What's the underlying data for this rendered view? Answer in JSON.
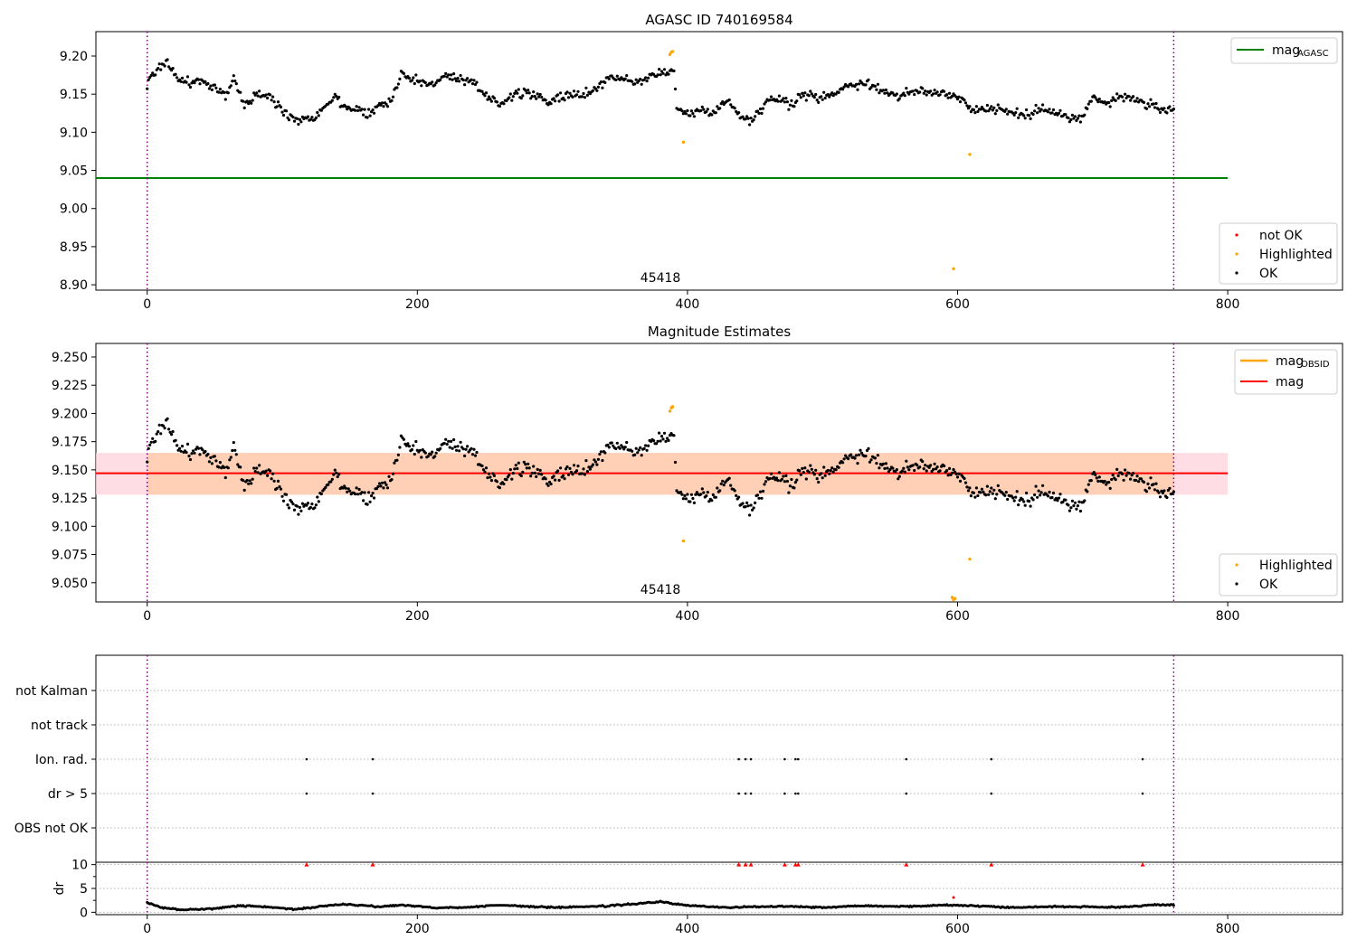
{
  "chart_data": [
    {
      "type": "scatter",
      "title": "AGASC ID 740169584",
      "xlim": [
        -38,
        885
      ],
      "ylim": [
        8.893,
        9.232
      ],
      "xticks": [
        "0",
        "200",
        "400",
        "600",
        "800"
      ],
      "yticks": [
        "8.90",
        "8.95",
        "9.00",
        "9.05",
        "9.10",
        "9.15",
        "9.20"
      ],
      "vlines": [
        0,
        760
      ],
      "obsid_label": "45418",
      "reference_line": {
        "label_main": "mag",
        "label_sub": "AGASC",
        "y": 9.04,
        "x": [
          -38,
          800
        ],
        "color": "#008000"
      },
      "legend_points": [
        "not OK",
        "Highlighted",
        "OK"
      ],
      "highlighted": [
        [
          387,
          9.202
        ],
        [
          388,
          9.205
        ],
        [
          389,
          9.206
        ],
        [
          397,
          9.087
        ],
        [
          597,
          8.921
        ],
        [
          609,
          9.071
        ]
      ],
      "ok_keypoints": [
        [
          0,
          9.163
        ],
        [
          8,
          9.185
        ],
        [
          15,
          9.193
        ],
        [
          22,
          9.17
        ],
        [
          32,
          9.165
        ],
        [
          40,
          9.168
        ],
        [
          50,
          9.155
        ],
        [
          58,
          9.15
        ],
        [
          65,
          9.17
        ],
        [
          72,
          9.135
        ],
        [
          82,
          9.15
        ],
        [
          92,
          9.145
        ],
        [
          100,
          9.128
        ],
        [
          110,
          9.118
        ],
        [
          120,
          9.118
        ],
        [
          130,
          9.13
        ],
        [
          138,
          9.148
        ],
        [
          145,
          9.135
        ],
        [
          155,
          9.13
        ],
        [
          165,
          9.125
        ],
        [
          172,
          9.135
        ],
        [
          180,
          9.14
        ],
        [
          188,
          9.178
        ],
        [
          198,
          9.168
        ],
        [
          210,
          9.162
        ],
        [
          220,
          9.175
        ],
        [
          230,
          9.168
        ],
        [
          240,
          9.165
        ],
        [
          250,
          9.15
        ],
        [
          262,
          9.138
        ],
        [
          272,
          9.15
        ],
        [
          285,
          9.15
        ],
        [
          300,
          9.14
        ],
        [
          312,
          9.148
        ],
        [
          322,
          9.15
        ],
        [
          333,
          9.158
        ],
        [
          345,
          9.175
        ],
        [
          352,
          9.17
        ],
        [
          362,
          9.165
        ],
        [
          372,
          9.172
        ],
        [
          384,
          9.18
        ],
        [
          390,
          9.185
        ],
        [
          392,
          9.128
        ],
        [
          400,
          9.125
        ],
        [
          410,
          9.128
        ],
        [
          420,
          9.13
        ],
        [
          430,
          9.14
        ],
        [
          440,
          9.122
        ],
        [
          448,
          9.115
        ],
        [
          458,
          9.14
        ],
        [
          465,
          9.148
        ],
        [
          476,
          9.135
        ],
        [
          486,
          9.15
        ],
        [
          496,
          9.145
        ],
        [
          506,
          9.15
        ],
        [
          520,
          9.162
        ],
        [
          532,
          9.165
        ],
        [
          544,
          9.155
        ],
        [
          556,
          9.148
        ],
        [
          570,
          9.153
        ],
        [
          582,
          9.152
        ],
        [
          596,
          9.15
        ],
        [
          606,
          9.14
        ],
        [
          612,
          9.128
        ],
        [
          622,
          9.132
        ],
        [
          632,
          9.13
        ],
        [
          642,
          9.125
        ],
        [
          652,
          9.122
        ],
        [
          662,
          9.13
        ],
        [
          672,
          9.13
        ],
        [
          682,
          9.118
        ],
        [
          692,
          9.118
        ],
        [
          700,
          9.145
        ],
        [
          710,
          9.138
        ],
        [
          720,
          9.145
        ],
        [
          730,
          9.145
        ],
        [
          742,
          9.135
        ],
        [
          752,
          9.13
        ],
        [
          760,
          9.125
        ]
      ]
    },
    {
      "type": "scatter",
      "title": "Magnitude Estimates",
      "xlim": [
        -38,
        885
      ],
      "ylim": [
        9.033,
        9.262
      ],
      "xticks": [
        "0",
        "200",
        "400",
        "600",
        "800"
      ],
      "yticks": [
        "9.050",
        "9.075",
        "9.100",
        "9.125",
        "9.150",
        "9.175",
        "9.200",
        "9.225",
        "9.250"
      ],
      "vlines": [
        0,
        760
      ],
      "obsid_label": "45418",
      "mag_line": {
        "label": "mag",
        "y": 9.147,
        "x": [
          -38,
          800
        ],
        "color": "#ff0000"
      },
      "mag_band": {
        "y0": 9.128,
        "y1": 9.165,
        "x": [
          -38,
          800
        ]
      },
      "obsid_band": {
        "y0": 9.128,
        "y1": 9.165,
        "x": [
          0,
          760
        ]
      },
      "obsid_legend": {
        "label_main": "mag",
        "label_sub": "OBSID",
        "color": "#ffa500"
      },
      "legend_points": [
        "Highlighted",
        "OK"
      ],
      "highlighted": [
        [
          387,
          9.202
        ],
        [
          388,
          9.205
        ],
        [
          389,
          9.206
        ],
        [
          397,
          9.087
        ],
        [
          596,
          9.037
        ],
        [
          597,
          9.035
        ],
        [
          598,
          9.036
        ],
        [
          609,
          9.071
        ]
      ]
    },
    {
      "type": "scatter",
      "xlim": [
        -38,
        885
      ],
      "yticks": [
        "not Kalman",
        "not track",
        "Ion. rad.",
        "dr > 5",
        "OBS not OK"
      ],
      "flag_x": [
        118,
        167,
        438,
        443,
        447,
        472,
        480,
        482,
        562,
        625,
        737
      ],
      "flag_rows": [
        "Ion. rad.",
        "dr > 5"
      ],
      "vlines": [
        0,
        760
      ]
    },
    {
      "type": "scatter",
      "ylabel": "dr",
      "xlim": [
        -38,
        885
      ],
      "ylim": [
        -0.5,
        10.5
      ],
      "yticks": [
        "0",
        "5",
        "10"
      ],
      "xticks": [
        "0",
        "200",
        "400",
        "600",
        "800"
      ],
      "vlines": [
        0,
        760
      ],
      "capped_x": [
        118,
        167,
        438,
        443,
        447,
        472,
        480,
        482,
        562,
        625,
        737
      ],
      "capped_y": 10,
      "red_points": [
        [
          597,
          3.1
        ]
      ],
      "dr_keypoints": [
        [
          0,
          2.0
        ],
        [
          10,
          1.0
        ],
        [
          25,
          0.5
        ],
        [
          50,
          0.8
        ],
        [
          68,
          1.4
        ],
        [
          90,
          1.1
        ],
        [
          110,
          0.6
        ],
        [
          130,
          1.3
        ],
        [
          145,
          1.7
        ],
        [
          170,
          1.2
        ],
        [
          190,
          1.5
        ],
        [
          215,
          0.9
        ],
        [
          240,
          1.1
        ],
        [
          260,
          1.5
        ],
        [
          300,
          1.0
        ],
        [
          340,
          1.3
        ],
        [
          380,
          2.2
        ],
        [
          400,
          1.4
        ],
        [
          430,
          1.0
        ],
        [
          470,
          1.3
        ],
        [
          500,
          1.0
        ],
        [
          530,
          1.4
        ],
        [
          560,
          1.2
        ],
        [
          590,
          1.5
        ],
        [
          610,
          1.4
        ],
        [
          640,
          1.0
        ],
        [
          670,
          1.2
        ],
        [
          700,
          1.1
        ],
        [
          720,
          1.0
        ],
        [
          745,
          1.6
        ],
        [
          760,
          1.5
        ]
      ]
    }
  ]
}
